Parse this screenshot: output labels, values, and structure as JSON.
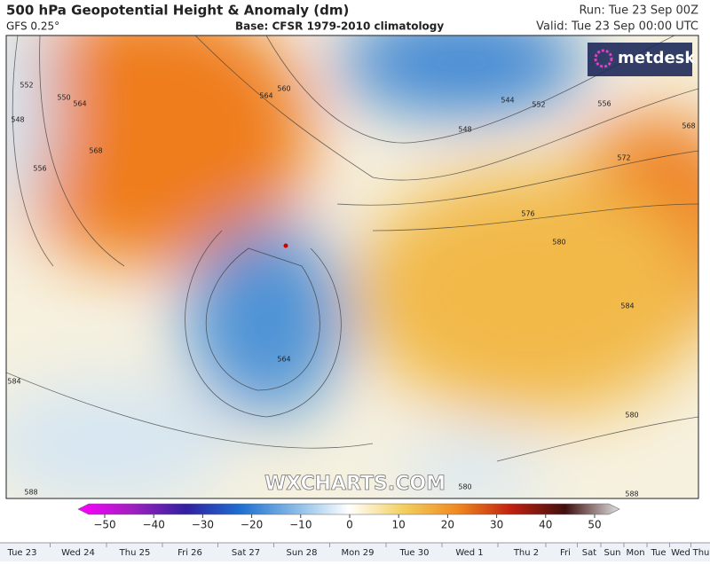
{
  "header": {
    "title": "500 hPa Geopotential Height & Anomaly (dm)",
    "model": "GFS 0.25°",
    "base": "Base: CFSR 1979-2010 climatology",
    "run": "Run: Tue 23 Sep 00Z",
    "valid": "Valid: Tue 23 Sep 00:00 UTC"
  },
  "map": {
    "logo": "metdesk",
    "watermark": "WXCHARTS.COM",
    "contour_labels": [
      "552",
      "548",
      "550",
      "556",
      "564",
      "568",
      "564",
      "560",
      "544",
      "552",
      "556",
      "548",
      "568",
      "572",
      "576",
      "580",
      "584",
      "584",
      "588",
      "580",
      "580",
      "588",
      "564"
    ]
  },
  "colorbar": {
    "ticks": [
      {
        "value": -50,
        "label": "−50"
      },
      {
        "value": -40,
        "label": "−40"
      },
      {
        "value": -30,
        "label": "−30"
      },
      {
        "value": -20,
        "label": "−20"
      },
      {
        "value": -10,
        "label": "−10"
      },
      0,
      10,
      20,
      30,
      40,
      50
    ]
  },
  "timeline": {
    "days": [
      "Tue 23",
      "Wed 24",
      "Thu 25",
      "Fri 26",
      "Sat 27",
      "Sun 28",
      "Mon 29",
      "Tue 30",
      "Wed 1",
      "Thu 2",
      "Fri",
      "Sat",
      "Sun",
      "Mon",
      "Tue",
      "Wed",
      "Thu"
    ]
  }
}
